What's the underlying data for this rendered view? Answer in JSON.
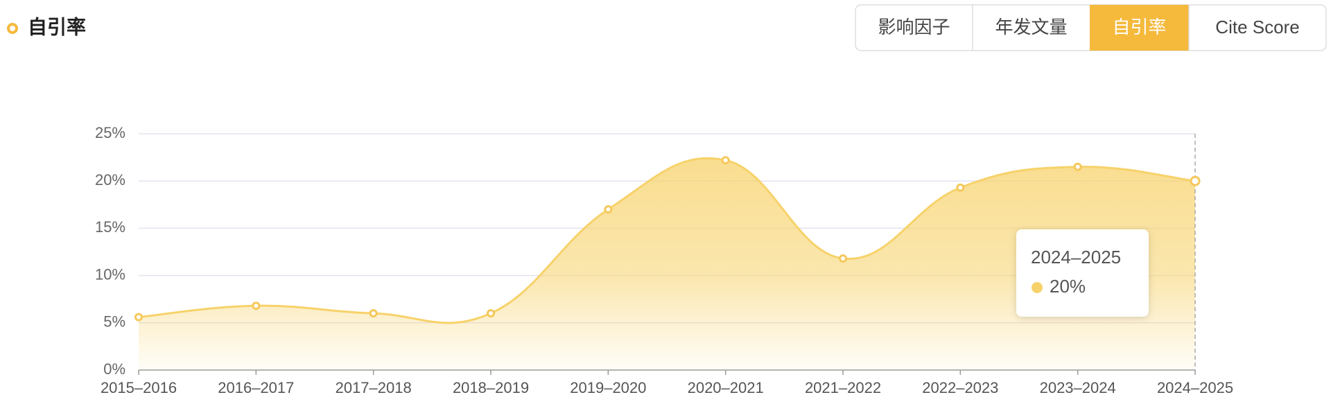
{
  "tabs": {
    "items": [
      "影响因子",
      "年发文量",
      "自引率",
      "Cite Score"
    ],
    "active": 2
  },
  "chart_data": {
    "type": "area",
    "title": "自引率",
    "categories": [
      "2015–2016",
      "2016–2017",
      "2017–2018",
      "2018–2019",
      "2019–2020",
      "2020–2021",
      "2021–2022",
      "2022–2023",
      "2023–2024",
      "2024–2025"
    ],
    "values": [
      5.6,
      6.8,
      6.0,
      6.0,
      17.0,
      22.2,
      11.8,
      19.3,
      21.5,
      20
    ],
    "value_labels": [
      null,
      null,
      null,
      null,
      null,
      null,
      null,
      null,
      null,
      "20%"
    ],
    "color": "#f7d26a",
    "ylim": [
      0,
      25
    ],
    "yticks": [
      {
        "value": 0,
        "label": "0%"
      },
      {
        "value": 5,
        "label": "5%"
      },
      {
        "value": 10,
        "label": "10%"
      },
      {
        "value": 15,
        "label": "15%"
      },
      {
        "value": 20,
        "label": "20%"
      },
      {
        "value": 25,
        "label": "25%"
      }
    ],
    "grid": true
  }
}
